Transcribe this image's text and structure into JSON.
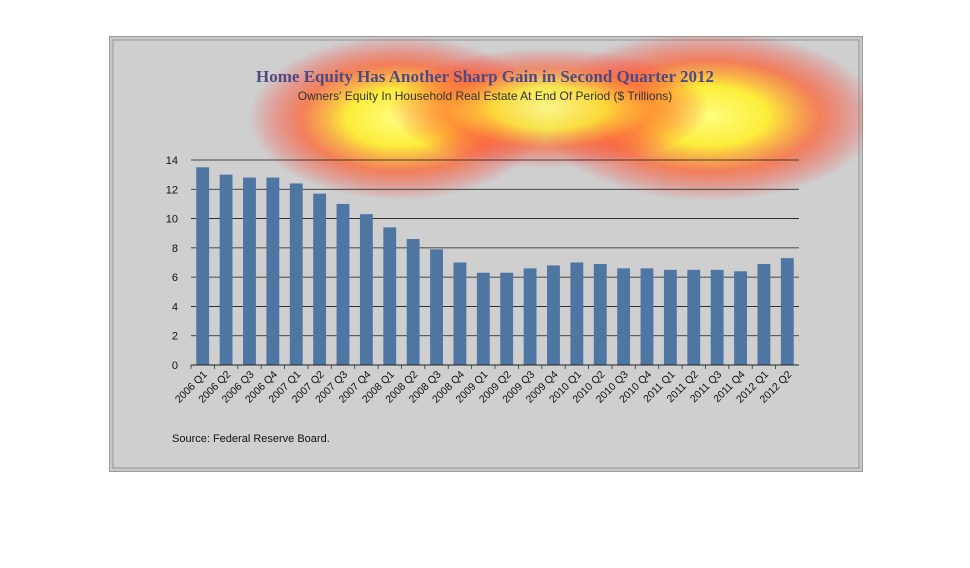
{
  "chart_data": {
    "type": "bar",
    "title": "Home Equity Has Another Sharp Gain in Second Quarter 2012",
    "subtitle": "Owners' Equity In Household Real Estate At End Of Period ($ Trillions)",
    "source": "Source:  Federal Reserve Board.",
    "categories": [
      "2006 Q1",
      "2006 Q2",
      "2006 Q3",
      "2006 Q4",
      "2007 Q1",
      "2007 Q2",
      "2007 Q3",
      "2007 Q4",
      "2008 Q1",
      "2008 Q2",
      "2008 Q3",
      "2008 Q4",
      "2009 Q1",
      "2009 Q2",
      "2009 Q3",
      "2009 Q4",
      "2010 Q1",
      "2010 Q2",
      "2010 Q3",
      "2010 Q4",
      "2011 Q1",
      "2011 Q2",
      "2011 Q3",
      "2011 Q4",
      "2012 Q1",
      "2012 Q2"
    ],
    "values": [
      13.5,
      13.0,
      12.8,
      12.8,
      12.4,
      11.7,
      11.0,
      10.3,
      9.4,
      8.6,
      7.9,
      7.0,
      6.3,
      6.3,
      6.6,
      6.8,
      7.0,
      6.9,
      6.6,
      6.6,
      6.5,
      6.5,
      6.5,
      6.4,
      6.9,
      7.3
    ],
    "ylim": [
      0,
      14
    ],
    "yticks": [
      0,
      2,
      4,
      6,
      8,
      10,
      12,
      14
    ],
    "grid": true,
    "bar_color": "#4f75a3",
    "gridline_color": "#1a1a1a"
  }
}
